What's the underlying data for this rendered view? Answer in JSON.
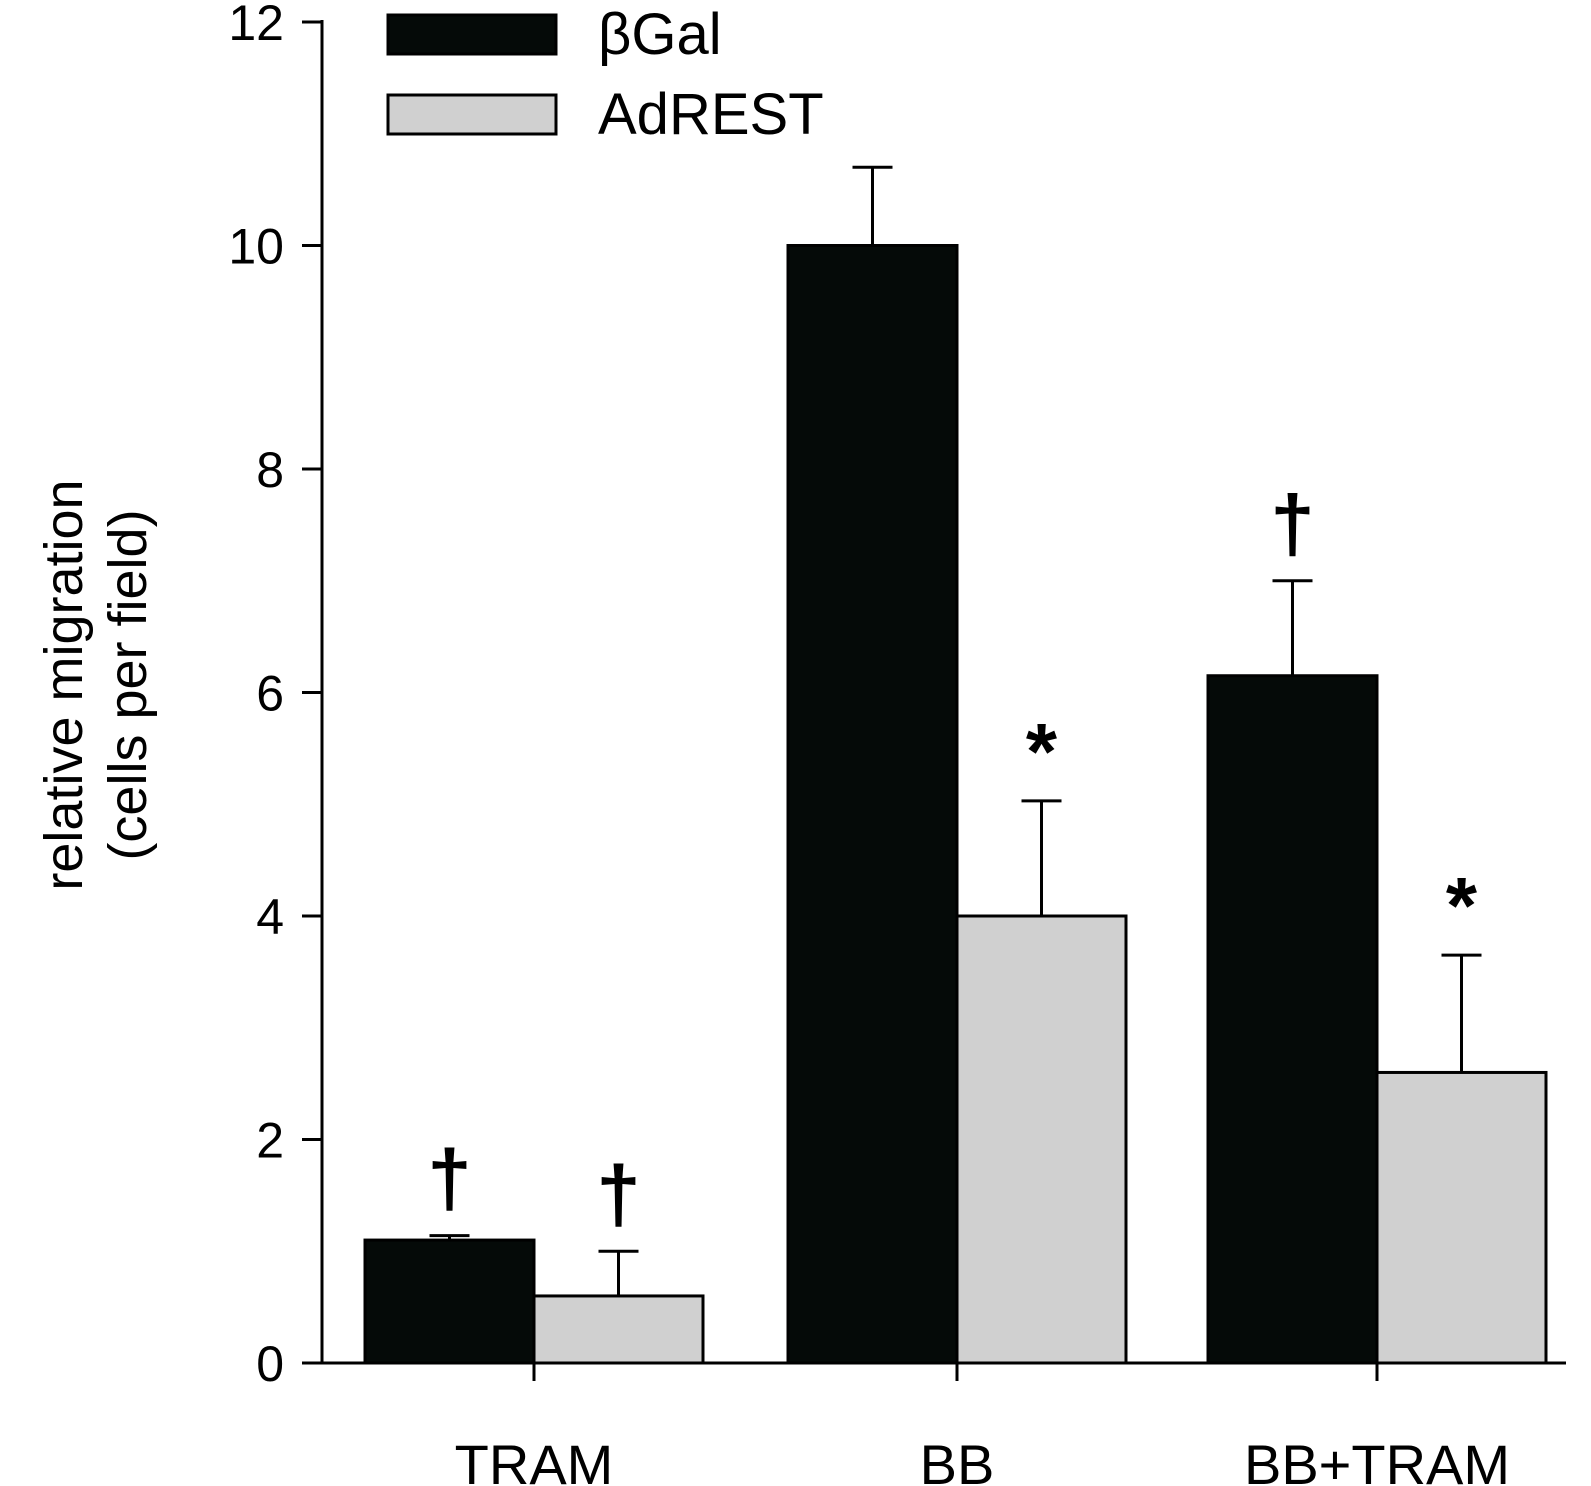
{
  "chart_data": {
    "type": "bar",
    "ylabel": [
      "relative migration",
      "(cells per field)"
    ],
    "xlabel": "",
    "ylim": [
      0,
      12
    ],
    "yticks": [
      0,
      2,
      4,
      6,
      8,
      10,
      12
    ],
    "categories": [
      "TRAM",
      "BB",
      "BB+TRAM"
    ],
    "series": [
      {
        "name": "βGal",
        "color": "#050a08",
        "values": [
          1.1,
          10.0,
          6.15
        ],
        "errors": [
          0.04,
          0.7,
          0.85
        ],
        "annotations": [
          "†",
          "",
          "†"
        ]
      },
      {
        "name": "AdREST",
        "color": "#d0d0d0",
        "values": [
          0.6,
          4.0,
          2.6
        ],
        "errors": [
          0.4,
          1.03,
          1.05
        ],
        "annotations": [
          "†",
          "*",
          "*"
        ]
      }
    ],
    "legend": "top-left",
    "grid": false
  }
}
